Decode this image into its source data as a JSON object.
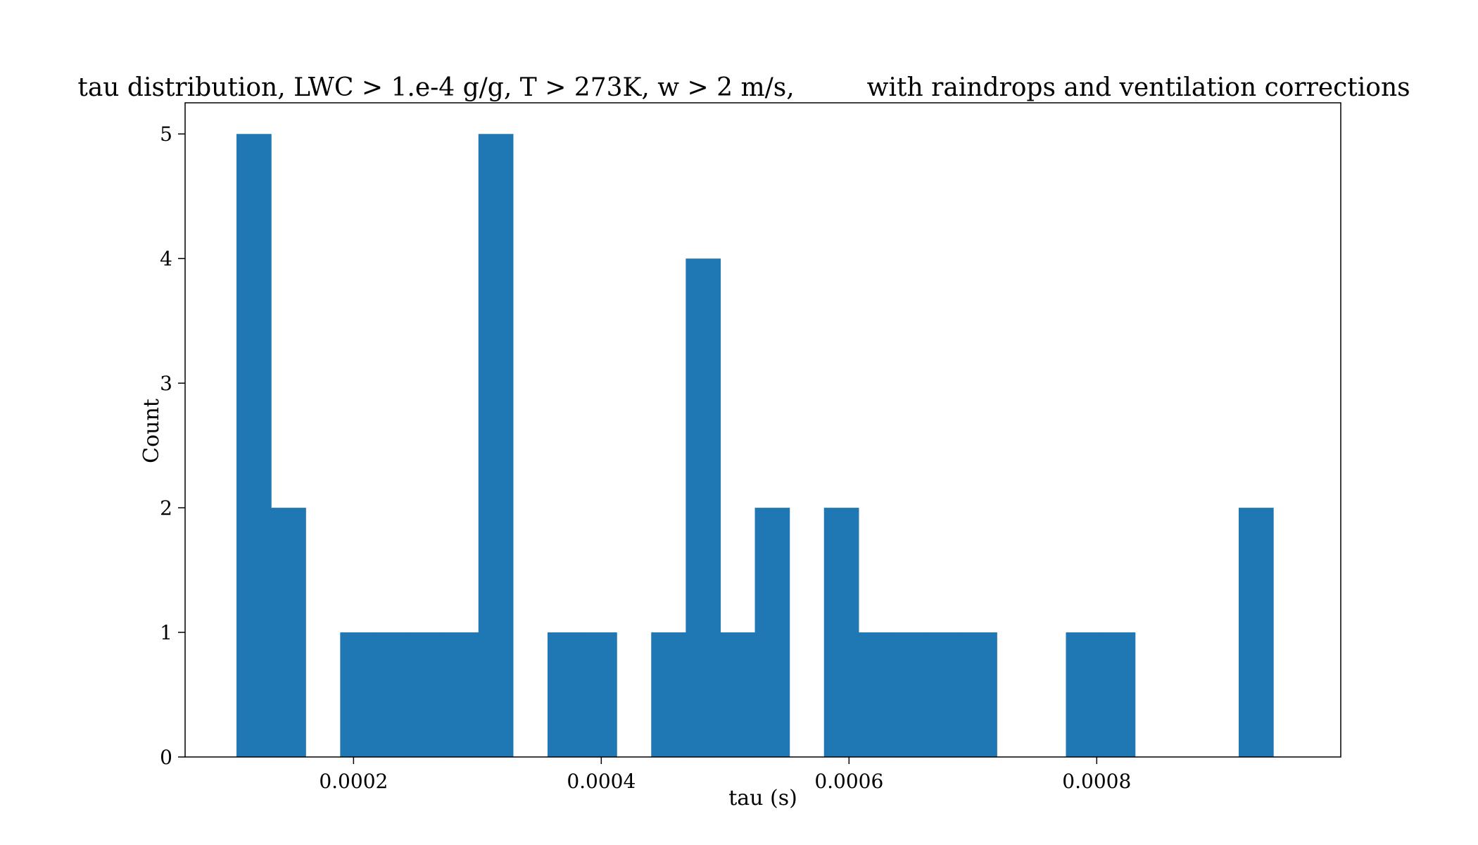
{
  "chart_data": {
    "type": "histogram",
    "title": "tau distribution, LWC > 1.e-4 g/g, T > 273K, w > 2 m/s,         with raindrops and ventilation corrections",
    "xlabel": "tau (s)",
    "ylabel": "Count",
    "bin_width": 2.79e-05,
    "bins": [
      {
        "start": 0.0001055,
        "count": 5
      },
      {
        "start": 0.0001334,
        "count": 2
      },
      {
        "start": 0.0001613,
        "count": 0
      },
      {
        "start": 0.0001892,
        "count": 1
      },
      {
        "start": 0.0002171,
        "count": 1
      },
      {
        "start": 0.000245,
        "count": 1
      },
      {
        "start": 0.0002729,
        "count": 1
      },
      {
        "start": 0.0003008,
        "count": 5
      },
      {
        "start": 0.0003287,
        "count": 0
      },
      {
        "start": 0.0003566,
        "count": 1
      },
      {
        "start": 0.0003845,
        "count": 1
      },
      {
        "start": 0.0004124,
        "count": 0
      },
      {
        "start": 0.0004403,
        "count": 1
      },
      {
        "start": 0.0004682,
        "count": 4
      },
      {
        "start": 0.0004961,
        "count": 1
      },
      {
        "start": 0.000524,
        "count": 2
      },
      {
        "start": 0.0005519,
        "count": 0
      },
      {
        "start": 0.0005798,
        "count": 2
      },
      {
        "start": 0.0006077,
        "count": 1
      },
      {
        "start": 0.0006356,
        "count": 1
      },
      {
        "start": 0.0006635,
        "count": 1
      },
      {
        "start": 0.0006914,
        "count": 1
      },
      {
        "start": 0.0007193,
        "count": 0
      },
      {
        "start": 0.0007472,
        "count": 0
      },
      {
        "start": 0.0007751,
        "count": 1
      },
      {
        "start": 0.000803,
        "count": 1
      },
      {
        "start": 0.0008309,
        "count": 0
      },
      {
        "start": 0.0008588,
        "count": 0
      },
      {
        "start": 0.0008867,
        "count": 0
      },
      {
        "start": 0.0009146,
        "count": 2
      }
    ],
    "xlim": [
      6.4e-05,
      0.000997
    ],
    "ylim": [
      0,
      5.25
    ],
    "xticks": [
      {
        "value": 0.0002,
        "label": "0.0002"
      },
      {
        "value": 0.0004,
        "label": "0.0004"
      },
      {
        "value": 0.0006,
        "label": "0.0006"
      },
      {
        "value": 0.0008,
        "label": "0.0008"
      }
    ],
    "yticks": [
      {
        "value": 0,
        "label": "0"
      },
      {
        "value": 1,
        "label": "1"
      },
      {
        "value": 2,
        "label": "2"
      },
      {
        "value": 3,
        "label": "3"
      },
      {
        "value": 4,
        "label": "4"
      },
      {
        "value": 5,
        "label": "5"
      }
    ],
    "bar_color": "#1f77b4",
    "grid": false,
    "legend": "none"
  }
}
